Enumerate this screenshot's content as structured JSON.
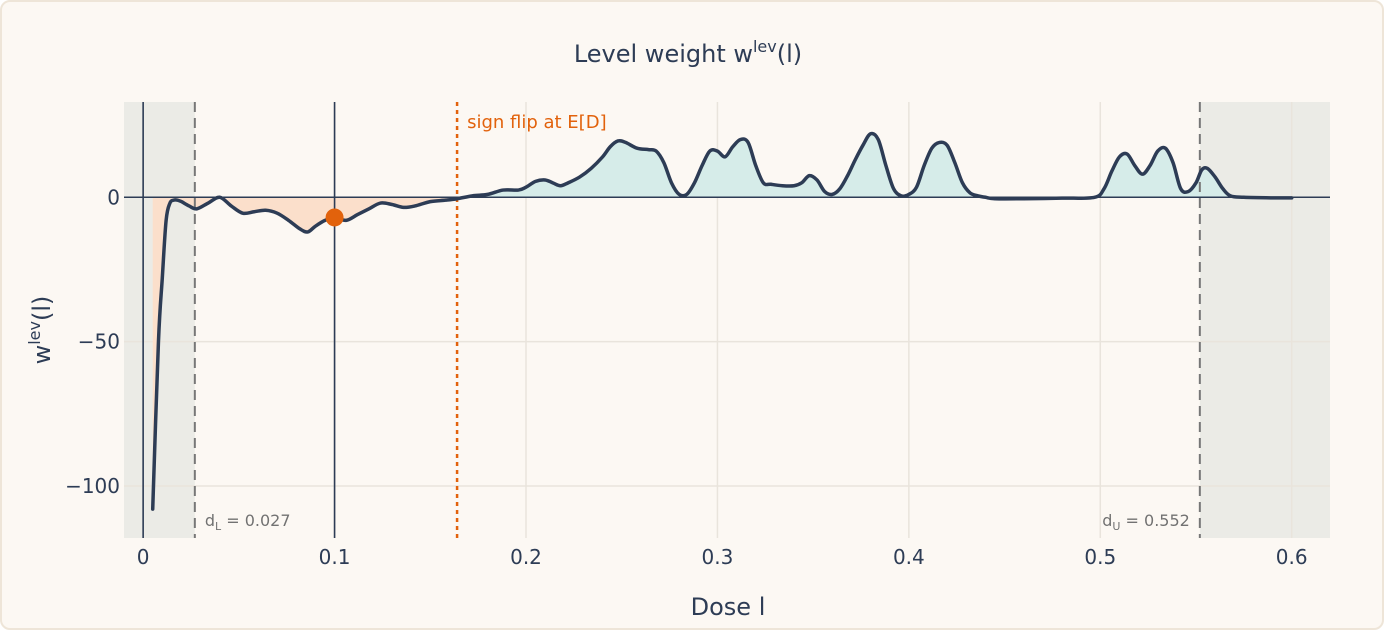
{
  "chart_data": {
    "type": "line",
    "title": {
      "main": "Level weight  w",
      "sup": "lev",
      "rest": "(l)"
    },
    "xlabel": "Dose l",
    "ylabel": {
      "main": "w",
      "sup": "lev",
      "rest": "(l)"
    },
    "xlim": [
      -0.01,
      0.62
    ],
    "ylim": [
      -118,
      33
    ],
    "xticks": [
      {
        "value": 0,
        "label": "0"
      },
      {
        "value": 0.1,
        "label": "0.1"
      },
      {
        "value": 0.2,
        "label": "0.2"
      },
      {
        "value": 0.3,
        "label": "0.3"
      },
      {
        "value": 0.4,
        "label": "0.4"
      },
      {
        "value": 0.5,
        "label": "0.5"
      },
      {
        "value": 0.6,
        "label": "0.6"
      }
    ],
    "yticks": [
      {
        "value": 0,
        "label": "0"
      },
      {
        "value": -50,
        "label": "−50"
      },
      {
        "value": -100,
        "label": "−100"
      }
    ],
    "grid": true,
    "shaded_regions": [
      {
        "x0": -0.01,
        "x1": 0.027
      },
      {
        "x0": 0.552,
        "x1": 0.62
      }
    ],
    "vertical_lines": [
      {
        "x": 0,
        "style": "solid",
        "color": "#2d3c55"
      },
      {
        "x": 0.1,
        "style": "solid",
        "color": "#2d3c55"
      },
      {
        "x": 0.027,
        "style": "dashed",
        "color": "#777777"
      },
      {
        "x": 0.552,
        "style": "dashed",
        "color": "#777777"
      },
      {
        "x": 0.164,
        "style": "dotted",
        "color": "#e2620c"
      }
    ],
    "annotations": {
      "sign_flip": {
        "x": 0.164,
        "text": "sign flip at E[D]"
      },
      "d_lower": {
        "x": 0.027,
        "sub": "L",
        "value": "0.027",
        "prefix": "d",
        "eq": " = "
      },
      "d_upper": {
        "x": 0.552,
        "sub": "U",
        "value": "0.552",
        "prefix": "d",
        "eq": " = "
      }
    },
    "marker": {
      "x": 0.1,
      "y": -7,
      "color": "#e2620c"
    },
    "fill_negative_color": "#fbdfcb",
    "fill_positive_color": "#d6ece9",
    "line_color": "#2d3c55",
    "series": [
      {
        "x": [
          0.005,
          0.008,
          0.01,
          0.012,
          0.014,
          0.016,
          0.018,
          0.02,
          0.024,
          0.028,
          0.034,
          0.04,
          0.046,
          0.052,
          0.058,
          0.064,
          0.07,
          0.076,
          0.082,
          0.086,
          0.09,
          0.095,
          0.1,
          0.106,
          0.112,
          0.118,
          0.124,
          0.13,
          0.136,
          0.142,
          0.15,
          0.158,
          0.164,
          0.172,
          0.18,
          0.188,
          0.196,
          0.2,
          0.205,
          0.21,
          0.214,
          0.218,
          0.222,
          0.228,
          0.234,
          0.24,
          0.244,
          0.248,
          0.252,
          0.258,
          0.264,
          0.268,
          0.272,
          0.276,
          0.28,
          0.284,
          0.288,
          0.292,
          0.296,
          0.3,
          0.304,
          0.308,
          0.312,
          0.316,
          0.32,
          0.324,
          0.328,
          0.334,
          0.34,
          0.344,
          0.348,
          0.352,
          0.356,
          0.36,
          0.364,
          0.368,
          0.372,
          0.376,
          0.38,
          0.384,
          0.388,
          0.392,
          0.396,
          0.4,
          0.404,
          0.408,
          0.412,
          0.416,
          0.42,
          0.424,
          0.428,
          0.432,
          0.436,
          0.44,
          0.445,
          0.46,
          0.48,
          0.497,
          0.502,
          0.506,
          0.51,
          0.514,
          0.518,
          0.522,
          0.526,
          0.53,
          0.534,
          0.538,
          0.542,
          0.546,
          0.55,
          0.553,
          0.556,
          0.56,
          0.564,
          0.568,
          0.575,
          0.59,
          0.6
        ],
        "y": [
          -108,
          -50,
          -28,
          -8,
          -2,
          -1,
          -1,
          -1.5,
          -3,
          -4,
          -2,
          0,
          -3,
          -5.5,
          -5,
          -4.5,
          -5.5,
          -8,
          -11,
          -12,
          -10,
          -8,
          -7,
          -8,
          -6,
          -4,
          -2,
          -2.5,
          -3.5,
          -3,
          -1.5,
          -1,
          -0.5,
          0.5,
          1,
          2.5,
          2.5,
          3.5,
          5.5,
          6,
          5,
          4,
          5,
          7,
          10,
          14,
          17.5,
          19.5,
          19,
          17,
          16.5,
          16,
          12,
          5,
          1,
          1,
          5,
          11,
          16,
          16,
          14,
          17.5,
          20,
          19,
          11,
          5,
          4.5,
          4,
          4,
          5,
          7.5,
          6,
          2,
          1,
          3,
          7.5,
          13,
          18,
          22,
          20,
          11,
          3,
          0.5,
          1,
          3.5,
          11,
          17,
          19,
          18,
          12,
          5,
          1.5,
          0.5,
          0,
          -0.5,
          -0.5,
          -0.3,
          0,
          3,
          9,
          14,
          15,
          11,
          8,
          11,
          16,
          17,
          12,
          3,
          2,
          5,
          9.5,
          10,
          7,
          3,
          0.5,
          0,
          -0.2,
          -0.2
        ]
      }
    ]
  }
}
